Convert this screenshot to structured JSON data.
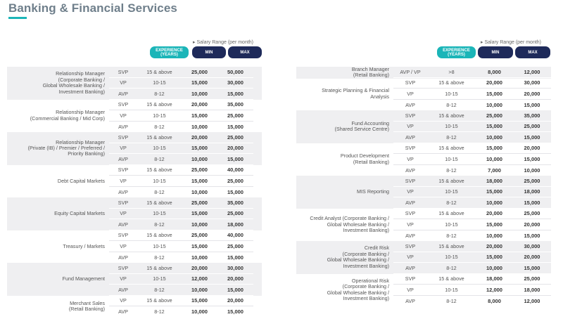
{
  "title": "Banking & Financial Services",
  "header": {
    "salary_range_note": "Salary Range (per month)",
    "experience_label_line1": "EXPERIENCE",
    "experience_label_line2": "(YEARS)",
    "min_label": "MIN",
    "max_label": "MAX"
  },
  "left": [
    {
      "role": [
        "Relationship Manager",
        "(Corporate Banking /",
        "Global Wholesale Banking /",
        "Investment Banking)"
      ],
      "rows": [
        [
          "SVP",
          "15 & above",
          "25,000",
          "50,000"
        ],
        [
          "VP",
          "10-15",
          "15,000",
          "30,000"
        ],
        [
          "AVP",
          "8-12",
          "10,000",
          "15,000"
        ]
      ]
    },
    {
      "role": [
        "Relationship Manager",
        "(Commercial Banking / Mid Corp)"
      ],
      "rows": [
        [
          "SVP",
          "15 & above",
          "20,000",
          "35,000"
        ],
        [
          "VP",
          "10-15",
          "15,000",
          "25,000"
        ],
        [
          "AVP",
          "8-12",
          "10,000",
          "15,000"
        ]
      ]
    },
    {
      "role": [
        "Relationship Manager",
        "(Private (IB) / Premier / Preferred /",
        "Priority Banking)"
      ],
      "rows": [
        [
          "SVP",
          "15 & above",
          "20,000",
          "25,000"
        ],
        [
          "VP",
          "10-15",
          "15,000",
          "20,000"
        ],
        [
          "AVP",
          "8-12",
          "10,000",
          "15,000"
        ]
      ]
    },
    {
      "role": [
        "Debt Capital Markets"
      ],
      "rows": [
        [
          "SVP",
          "15 & above",
          "25,000",
          "40,000"
        ],
        [
          "VP",
          "10-15",
          "15,000",
          "25,000"
        ],
        [
          "AVP",
          "8-12",
          "10,000",
          "15,000"
        ]
      ]
    },
    {
      "role": [
        "Equity Capital Markets"
      ],
      "rows": [
        [
          "SVP",
          "15 & above",
          "25,000",
          "35,000"
        ],
        [
          "VP",
          "10-15",
          "15,000",
          "25,000"
        ],
        [
          "AVP",
          "8-12",
          "10,000",
          "18,000"
        ]
      ]
    },
    {
      "role": [
        "Treasury / Markets"
      ],
      "rows": [
        [
          "SVP",
          "15 & above",
          "25,000",
          "40,000"
        ],
        [
          "VP",
          "10-15",
          "15,000",
          "25,000"
        ],
        [
          "AVP",
          "8-12",
          "10,000",
          "15,000"
        ]
      ]
    },
    {
      "role": [
        "Fund Management"
      ],
      "rows": [
        [
          "SVP",
          "15 & above",
          "20,000",
          "30,000"
        ],
        [
          "VP",
          "10-15",
          "12,000",
          "20,000"
        ],
        [
          "AVP",
          "8-12",
          "10,000",
          "15,000"
        ]
      ]
    },
    {
      "role": [
        "Merchant Sales",
        "(Retail Banking)"
      ],
      "rows": [
        [
          "VP",
          "15 & above",
          "15,000",
          "20,000"
        ],
        [
          "AVP",
          "8-12",
          "10,000",
          "15,000"
        ]
      ]
    }
  ],
  "right": [
    {
      "role": [
        "Branch Manager",
        "(Retail Banking)"
      ],
      "rows": [
        [
          "AVP / VP",
          ">8",
          "8,000",
          "12,000"
        ]
      ]
    },
    {
      "role": [
        "Strategic Planning & Financial",
        "Analysis"
      ],
      "rows": [
        [
          "SVP",
          "15 & above",
          "20,000",
          "30,000"
        ],
        [
          "VP",
          "10-15",
          "15,000",
          "20,000"
        ],
        [
          "AVP",
          "8-12",
          "10,000",
          "15,000"
        ]
      ]
    },
    {
      "role": [
        "Fund Accounting",
        "(Shared Service Centre)"
      ],
      "rows": [
        [
          "SVP",
          "15 & above",
          "25,000",
          "35,000"
        ],
        [
          "VP",
          "10-15",
          "15,000",
          "25,000"
        ],
        [
          "AVP",
          "8-12",
          "10,000",
          "15,000"
        ]
      ]
    },
    {
      "role": [
        "Product Development",
        "(Retail Banking)"
      ],
      "rows": [
        [
          "SVP",
          "15 & above",
          "15,000",
          "20,000"
        ],
        [
          "VP",
          "10-15",
          "10,000",
          "15,000"
        ],
        [
          "AVP",
          "8-12",
          "7,000",
          "10,000"
        ]
      ]
    },
    {
      "role": [
        "MIS Reporting"
      ],
      "rows": [
        [
          "SVP",
          "15 & above",
          "18,000",
          "25,000"
        ],
        [
          "VP",
          "10-15",
          "15,000",
          "18,000"
        ],
        [
          "AVP",
          "8-12",
          "10,000",
          "15,000"
        ]
      ]
    },
    {
      "role": [
        "Credit Analyst (Corporate Banking /",
        "Global Wholesale Banking /",
        "Investment Banking)"
      ],
      "rows": [
        [
          "SVP",
          "15 & above",
          "20,000",
          "25,000"
        ],
        [
          "VP",
          "10-15",
          "15,000",
          "20,000"
        ],
        [
          "AVP",
          "8-12",
          "10,000",
          "15,000"
        ]
      ]
    },
    {
      "role": [
        "Credit Risk",
        "(Corporate Banking /",
        "Global Wholesale Banking /",
        "Investment Banking)"
      ],
      "rows": [
        [
          "SVP",
          "15 & above",
          "20,000",
          "30,000"
        ],
        [
          "VP",
          "10-15",
          "15,000",
          "20,000"
        ],
        [
          "AVP",
          "8-12",
          "10,000",
          "15,000"
        ]
      ]
    },
    {
      "role": [
        "Operational Risk",
        "(Corporate Banking /",
        "Global Wholesale Banking /",
        "Investment Banking)"
      ],
      "rows": [
        [
          "SVP",
          "15 & above",
          "18,000",
          "25,000"
        ],
        [
          "VP",
          "10-15",
          "12,000",
          "18,000"
        ],
        [
          "AVP",
          "8-12",
          "8,000",
          "12,000"
        ]
      ]
    }
  ]
}
